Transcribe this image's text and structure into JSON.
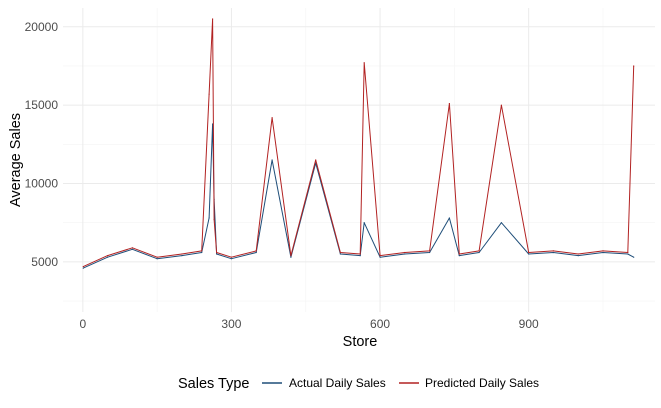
{
  "chart_data": {
    "type": "line",
    "xlabel": "Store",
    "ylabel": "Average Sales",
    "xlim": [
      -40,
      1155
    ],
    "ylim": [
      1800,
      21200
    ],
    "x_ticks": [
      0,
      300,
      600,
      900
    ],
    "x_tick_labels": [
      "0",
      "300",
      "600",
      "900"
    ],
    "y_ticks": [
      5000,
      10000,
      15000,
      20000
    ],
    "y_tick_labels": [
      "5000",
      "10000",
      "15000",
      "20000"
    ],
    "grid": true,
    "legend": {
      "position": "bottom",
      "title": "Sales Type"
    },
    "series": [
      {
        "name": "Actual Daily Sales",
        "color": "#1f4e79",
        "x": [
          1,
          50,
          100,
          150,
          200,
          240,
          255,
          262,
          265,
          270,
          300,
          350,
          382,
          420,
          470,
          520,
          560,
          568,
          600,
          650,
          700,
          740,
          760,
          800,
          845,
          900,
          950,
          1000,
          1050,
          1100,
          1112
        ],
        "values": [
          4600,
          5300,
          5800,
          5200,
          5400,
          5600,
          7800,
          13800,
          9000,
          5500,
          5200,
          5600,
          11500,
          5300,
          11300,
          5500,
          5400,
          7500,
          5300,
          5500,
          5600,
          7800,
          5400,
          5600,
          7500,
          5500,
          5600,
          5400,
          5600,
          5500,
          5300
        ]
      },
      {
        "name": "Predicted Daily Sales",
        "color": "#b22222",
        "x": [
          1,
          50,
          100,
          150,
          200,
          240,
          255,
          262,
          265,
          270,
          300,
          350,
          382,
          420,
          470,
          520,
          560,
          568,
          600,
          650,
          700,
          740,
          760,
          800,
          845,
          900,
          950,
          1000,
          1050,
          1100,
          1112
        ],
        "values": [
          4700,
          5400,
          5900,
          5300,
          5500,
          5700,
          15700,
          20500,
          7700,
          5600,
          5300,
          5700,
          14200,
          5400,
          11500,
          5600,
          5500,
          17700,
          5400,
          5600,
          5700,
          15100,
          5500,
          5700,
          15000,
          5600,
          5700,
          5500,
          5700,
          5600,
          17500
        ]
      }
    ]
  }
}
